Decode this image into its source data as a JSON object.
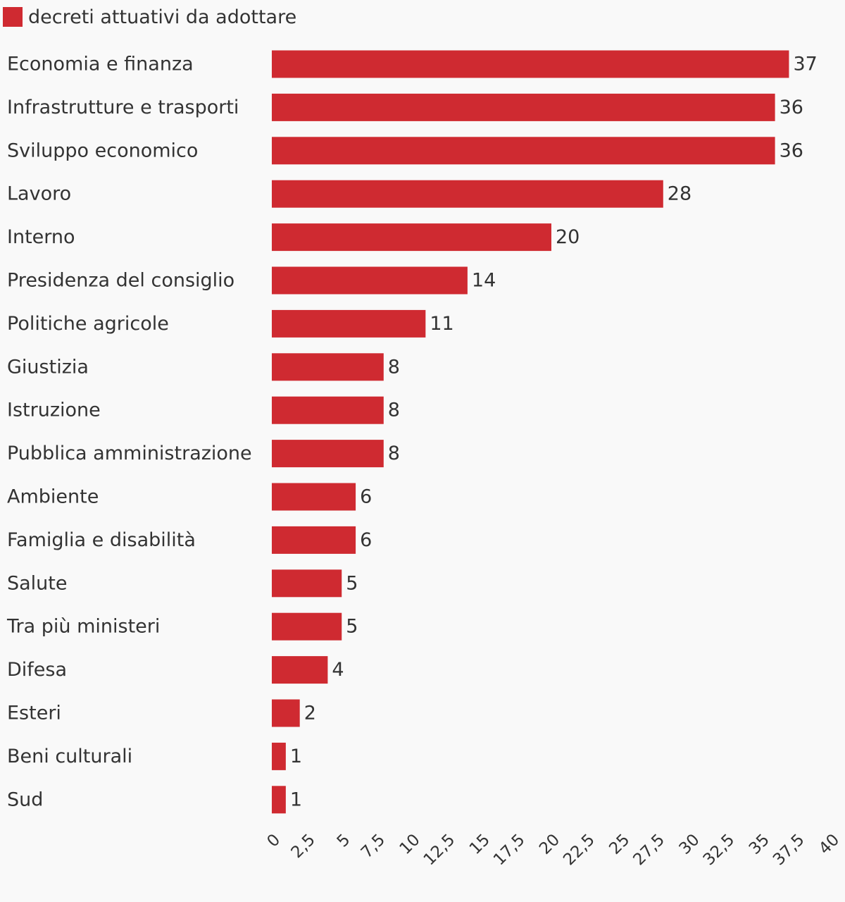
{
  "chart_data": {
    "type": "bar",
    "orientation": "horizontal",
    "categories": [
      "Economia e finanza",
      "Infrastrutture e trasporti",
      "Sviluppo economico",
      "Lavoro",
      "Interno",
      "Presidenza del consiglio",
      "Politiche agricole",
      "Giustizia",
      "Istruzione",
      "Pubblica amministrazione",
      "Ambiente",
      "Famiglia e disabilità",
      "Salute",
      "Tra più ministeri",
      "Difesa",
      "Esteri",
      "Beni culturali",
      "Sud"
    ],
    "series": [
      {
        "name": "decreti attuativi da adottare",
        "color": "#cf2a31",
        "values": [
          37,
          36,
          36,
          28,
          20,
          14,
          11,
          8,
          8,
          8,
          6,
          6,
          5,
          5,
          4,
          2,
          1,
          1
        ]
      }
    ],
    "xlim": [
      0,
      40
    ],
    "xticks": [
      0,
      2.5,
      5,
      7.5,
      10,
      12.5,
      15,
      17.5,
      20,
      22.5,
      25,
      27.5,
      30,
      32.5,
      35,
      37.5,
      40
    ],
    "xtick_labels": [
      "0",
      "2,5",
      "5",
      "7,5",
      "10",
      "12,5",
      "15",
      "17,5",
      "20",
      "22,5",
      "25",
      "27,5",
      "30",
      "32,5",
      "35",
      "37,5",
      "40"
    ],
    "grid": false,
    "legend_position": "top-left",
    "data_labels": true
  }
}
